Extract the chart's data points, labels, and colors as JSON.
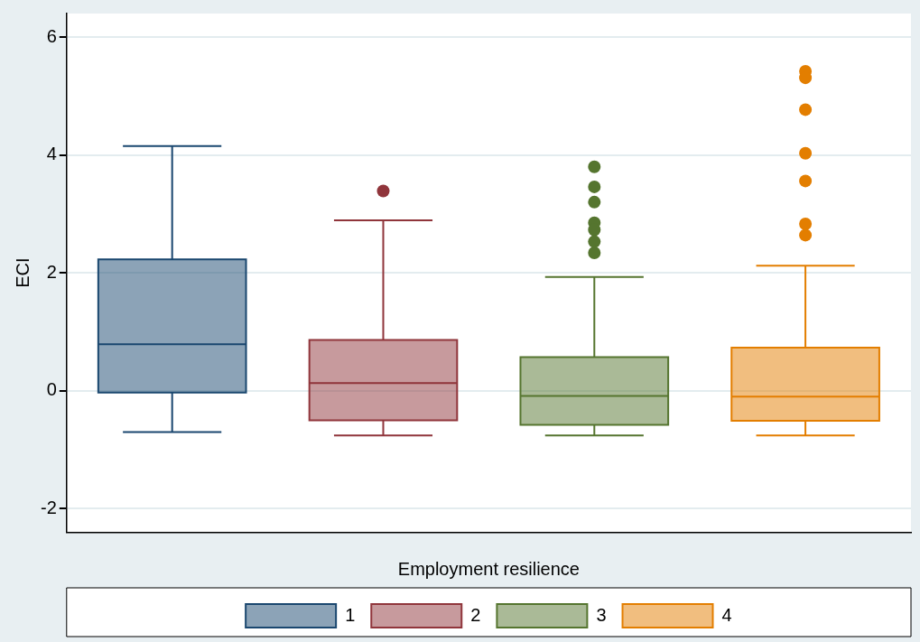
{
  "chart_data": {
    "type": "box",
    "ylabel": "ECI",
    "xlabel": "Employment resilience",
    "categories": [
      null,
      null,
      null,
      null
    ],
    "ylim": [
      -2.4,
      6.4
    ],
    "yticks": [
      -2,
      0,
      2,
      4,
      6
    ],
    "grid": "y",
    "legend": "bottom",
    "marker": "circle",
    "series": [
      {
        "name": "1",
        "color": "#1a476f",
        "boxes": [
          {
            "low": -0.7,
            "q1": -0.03,
            "median": 0.79,
            "q3": 2.23,
            "high": 4.15
          },
          null,
          null,
          null
        ]
      },
      {
        "name": "2",
        "color": "#90353b",
        "boxes": [
          null,
          {
            "low": -0.76,
            "q1": -0.5,
            "median": 0.13,
            "q3": 0.86,
            "high": 2.89,
            "outliers": [
              3.39
            ]
          },
          null,
          null
        ]
      },
      {
        "name": "3",
        "color": "#55752f",
        "boxes": [
          null,
          null,
          {
            "low": -0.76,
            "q1": -0.58,
            "median": -0.09,
            "q3": 0.57,
            "high": 1.93,
            "outliers": [
              3.8,
              3.46,
              3.2,
              2.85,
              2.73,
              2.53,
              2.34
            ]
          },
          null
        ]
      },
      {
        "name": "4",
        "color": "#e37e00",
        "boxes": [
          null,
          null,
          null,
          {
            "low": -0.76,
            "q1": -0.51,
            "median": -0.1,
            "q3": 0.73,
            "high": 2.12,
            "outliers": [
              5.42,
              5.31,
              4.77,
              4.03,
              3.56,
              2.83,
              2.64
            ]
          }
        ]
      }
    ]
  }
}
